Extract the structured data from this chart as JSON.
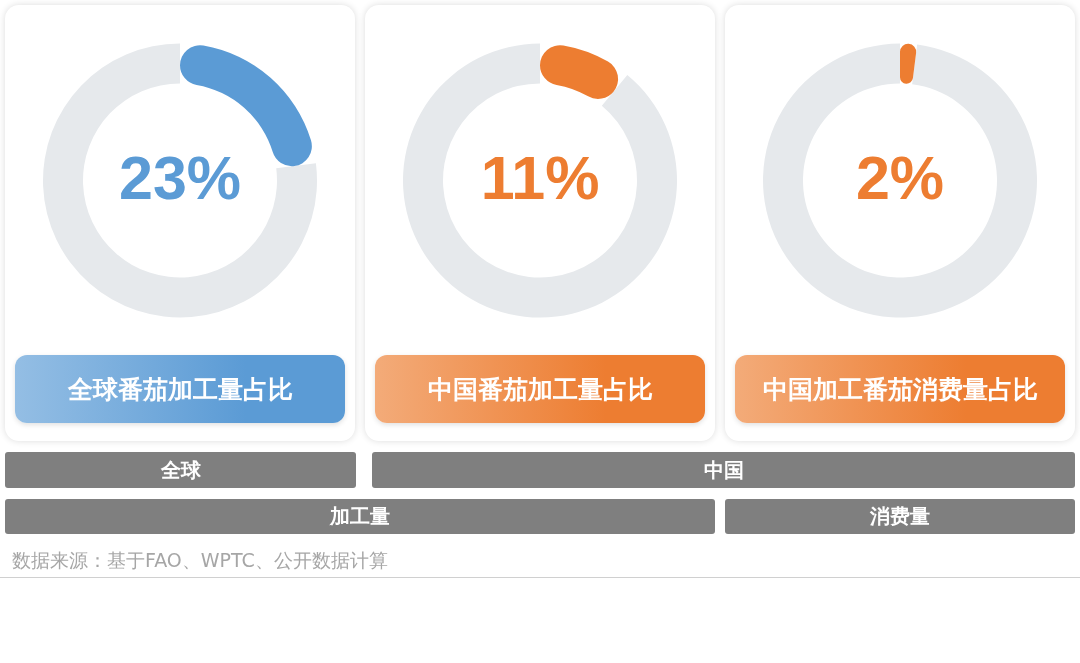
{
  "chart_data": [
    {
      "type": "donut",
      "title": "全球番茄加工量占比",
      "categories": [
        null,
        null
      ],
      "values": [
        23,
        77
      ],
      "colors": [
        "#5b9bd5",
        "#e6e9ec"
      ],
      "value_labels": [
        "23%",
        null
      ]
    },
    {
      "type": "donut",
      "title": "中国番茄加工量占比",
      "categories": [
        null,
        null
      ],
      "values": [
        11,
        89
      ],
      "colors": [
        "#ed7d31",
        "#e6e9ec"
      ],
      "value_labels": [
        "11%",
        null
      ]
    },
    {
      "type": "donut",
      "title": "中国加工番茄消费量占比",
      "categories": [
        null,
        null
      ],
      "values": [
        2,
        98
      ],
      "colors": [
        "#ed7d31",
        "#e6e9ec"
      ],
      "value_labels": [
        "2%",
        null
      ]
    },
    {
      "type": "other",
      "annotations": [
        "全球",
        "中国",
        "加工量",
        "消费量",
        "数据来源：基于FAO、WPTC、公开数据计算"
      ]
    }
  ]
}
